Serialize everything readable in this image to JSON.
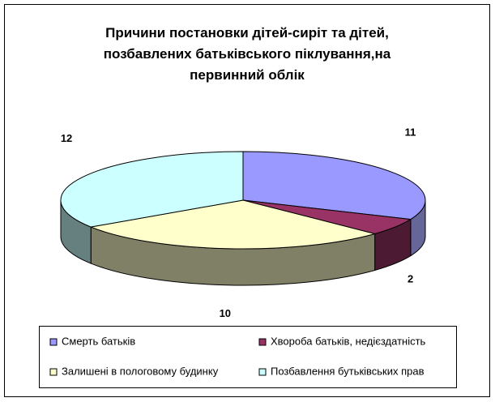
{
  "chart_data": {
    "type": "pie3d",
    "title": "Причини постановки дітей-сиріт та дітей, позбавлених батьківського піклування,на первинний облік",
    "categories": [
      "Смерть батьків",
      "Хвороба батьків, недієздатність",
      "Залишені в пологовому будинку",
      "Позбавлення бутьківських прав"
    ],
    "values": [
      11,
      2,
      10,
      12
    ],
    "colors": [
      "#9999FF",
      "#993366",
      "#FFFFCC",
      "#CCFFFF"
    ],
    "side_colors": [
      "#666699",
      "#4D1A33",
      "#808066",
      "#668080"
    ]
  }
}
